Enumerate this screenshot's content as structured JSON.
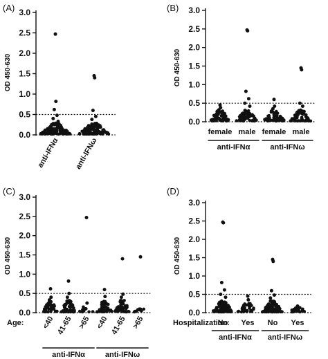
{
  "chart_data": [
    {
      "type": "scatter",
      "panel": "(A)",
      "ylabel": "OD 450-630",
      "ylim": [
        0,
        3.0
      ],
      "yticks": [
        0.0,
        0.5,
        1.0,
        1.5,
        2.0,
        2.5,
        3.0
      ],
      "threshold": 0.5,
      "baseline": 0.0,
      "categories": [
        "anti-IFNα",
        "anti-IFNω"
      ],
      "category_row_title": "",
      "groups": [],
      "series": [
        {
          "category": "anti-IFNα",
          "outliers": [
            2.47,
            0.82,
            0.62,
            0.48,
            0.4,
            0.33
          ],
          "cluster_max": 0.28,
          "cluster_count": 120
        },
        {
          "category": "anti-IFNω",
          "outliers": [
            1.45,
            1.4,
            0.6,
            0.45,
            0.38
          ],
          "cluster_max": 0.28,
          "cluster_count": 120
        }
      ]
    },
    {
      "type": "scatter",
      "panel": "(B)",
      "ylabel": "OD 450-630",
      "ylim": [
        0,
        3.0
      ],
      "yticks": [
        0.0,
        0.5,
        1.0,
        1.5,
        2.0,
        2.5,
        3.0
      ],
      "threshold": 0.5,
      "baseline": 0.0,
      "categories": [
        "female",
        "male",
        "female",
        "male"
      ],
      "category_row_title": "",
      "groups": [
        {
          "label": "anti-IFNα",
          "span": [
            0,
            1
          ]
        },
        {
          "label": "anti-IFNω",
          "span": [
            2,
            3
          ]
        }
      ],
      "series": [
        {
          "category": "female",
          "group": "anti-IFNα",
          "outliers": [
            0.45,
            0.38,
            0.32
          ],
          "cluster_max": 0.28,
          "cluster_count": 60
        },
        {
          "category": "male",
          "group": "anti-IFNα",
          "outliers": [
            2.47,
            2.45,
            0.82,
            0.62,
            0.5,
            0.42
          ],
          "cluster_max": 0.3,
          "cluster_count": 60
        },
        {
          "category": "female",
          "group": "anti-IFNω",
          "outliers": [
            0.6,
            0.42,
            0.35
          ],
          "cluster_max": 0.28,
          "cluster_count": 60
        },
        {
          "category": "male",
          "group": "anti-IFNω",
          "outliers": [
            1.45,
            1.4,
            0.5,
            0.42
          ],
          "cluster_max": 0.3,
          "cluster_count": 60
        }
      ]
    },
    {
      "type": "scatter",
      "panel": "(C)",
      "ylabel": "OD 450-630",
      "ylim": [
        0,
        3.0
      ],
      "yticks": [
        0.0,
        0.5,
        1.0,
        1.5,
        2.0,
        2.5,
        3.0
      ],
      "threshold": 0.5,
      "baseline": 0.0,
      "categories": [
        "<40",
        "41-65",
        ">65",
        "<40",
        "41-65",
        ">65"
      ],
      "category_row_title": "Age:",
      "groups": [
        {
          "label": "anti-IFNα",
          "span": [
            0,
            2
          ]
        },
        {
          "label": "anti-IFNω",
          "span": [
            3,
            5
          ]
        }
      ],
      "series": [
        {
          "category": "<40",
          "group": "anti-IFNα",
          "outliers": [
            0.62,
            0.4,
            0.33
          ],
          "cluster_max": 0.28,
          "cluster_count": 45
        },
        {
          "category": "41-65",
          "group": "anti-IFNα",
          "outliers": [
            0.82,
            0.5,
            0.4
          ],
          "cluster_max": 0.3,
          "cluster_count": 55
        },
        {
          "category": ">65",
          "group": "anti-IFNα",
          "outliers": [
            2.47,
            0.25
          ],
          "cluster_max": 0.15,
          "cluster_count": 12
        },
        {
          "category": "<40",
          "group": "anti-IFNω",
          "outliers": [
            0.6,
            0.42
          ],
          "cluster_max": 0.28,
          "cluster_count": 45
        },
        {
          "category": "41-65",
          "group": "anti-IFNω",
          "outliers": [
            1.4,
            0.48,
            0.4
          ],
          "cluster_max": 0.3,
          "cluster_count": 55
        },
        {
          "category": ">65",
          "group": "anti-IFNω",
          "outliers": [
            1.45
          ],
          "cluster_max": 0.08,
          "cluster_count": 10
        }
      ]
    },
    {
      "type": "scatter",
      "panel": "(D)",
      "ylabel": "OD 450-630",
      "ylim": [
        0,
        3.0
      ],
      "yticks": [
        0.0,
        0.5,
        1.0,
        1.5,
        2.0,
        2.5,
        3.0
      ],
      "threshold": 0.5,
      "baseline": 0.0,
      "categories": [
        "No",
        "Yes",
        "No",
        "Yes"
      ],
      "category_row_title": "Hospitalization:",
      "groups": [
        {
          "label": "anti-IFNα",
          "span": [
            0,
            1
          ]
        },
        {
          "label": "anti-IFNω",
          "span": [
            2,
            3
          ]
        }
      ],
      "series": [
        {
          "category": "No",
          "group": "anti-IFNα",
          "outliers": [
            2.47,
            2.45,
            0.82,
            0.62,
            0.5,
            0.42
          ],
          "cluster_max": 0.3,
          "cluster_count": 90
        },
        {
          "category": "Yes",
          "group": "anti-IFNα",
          "outliers": [
            0.45,
            0.35
          ],
          "cluster_max": 0.25,
          "cluster_count": 30
        },
        {
          "category": "No",
          "group": "anti-IFNω",
          "outliers": [
            1.45,
            1.4,
            0.6,
            0.48,
            0.4
          ],
          "cluster_max": 0.3,
          "cluster_count": 90
        },
        {
          "category": "Yes",
          "group": "anti-IFNω",
          "outliers": [
            0.18
          ],
          "cluster_max": 0.12,
          "cluster_count": 25
        }
      ]
    }
  ]
}
